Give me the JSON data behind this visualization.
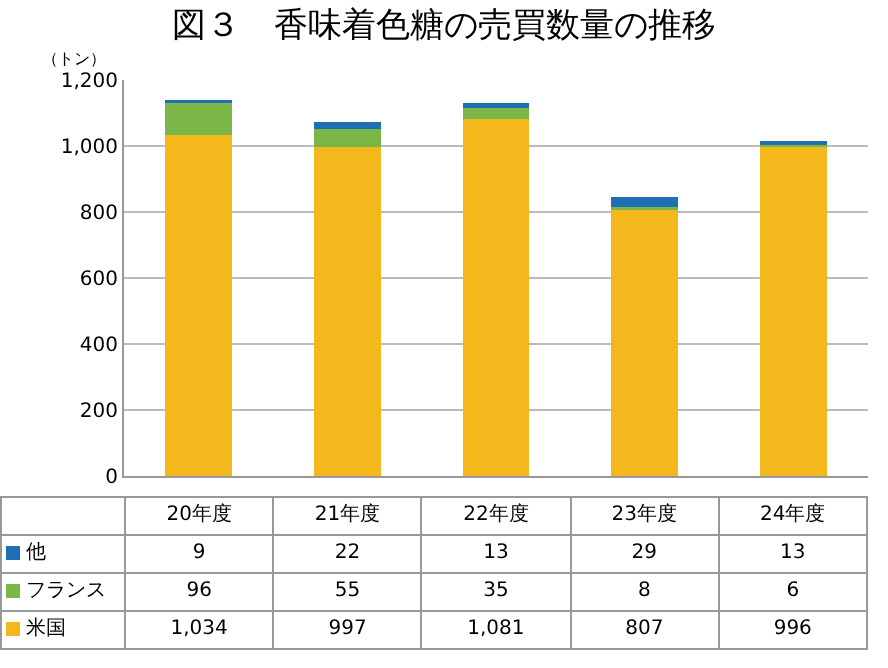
{
  "chart_data": {
    "type": "bar",
    "stacked": true,
    "title": "図３　香味着色糖の売買数量の推移",
    "ylabel": "（トン）",
    "categories": [
      "20年度",
      "21年度",
      "22年度",
      "23年度",
      "24年度"
    ],
    "series": [
      {
        "name": "米国",
        "color": "#f5b81c",
        "values": [
          1034,
          997,
          1081,
          807,
          996
        ],
        "value_labels": [
          "1,034",
          "997",
          "1,081",
          "807",
          "996"
        ]
      },
      {
        "name": "フランス",
        "color": "#7ab648",
        "values": [
          96,
          55,
          35,
          8,
          6
        ],
        "value_labels": [
          "96",
          "55",
          "35",
          "8",
          "6"
        ]
      },
      {
        "name": "他",
        "color": "#1f6fb5",
        "values": [
          9,
          22,
          13,
          29,
          13
        ],
        "value_labels": [
          "9",
          "22",
          "13",
          "29",
          "13"
        ]
      }
    ],
    "ylim": [
      0,
      1200
    ],
    "yticks": [
      0,
      200,
      400,
      600,
      800,
      {
        "value": 1000,
        "label": "1,000"
      },
      {
        "value": 1200,
        "label": "1,200"
      }
    ],
    "grid": "y",
    "legend": "bottom"
  }
}
